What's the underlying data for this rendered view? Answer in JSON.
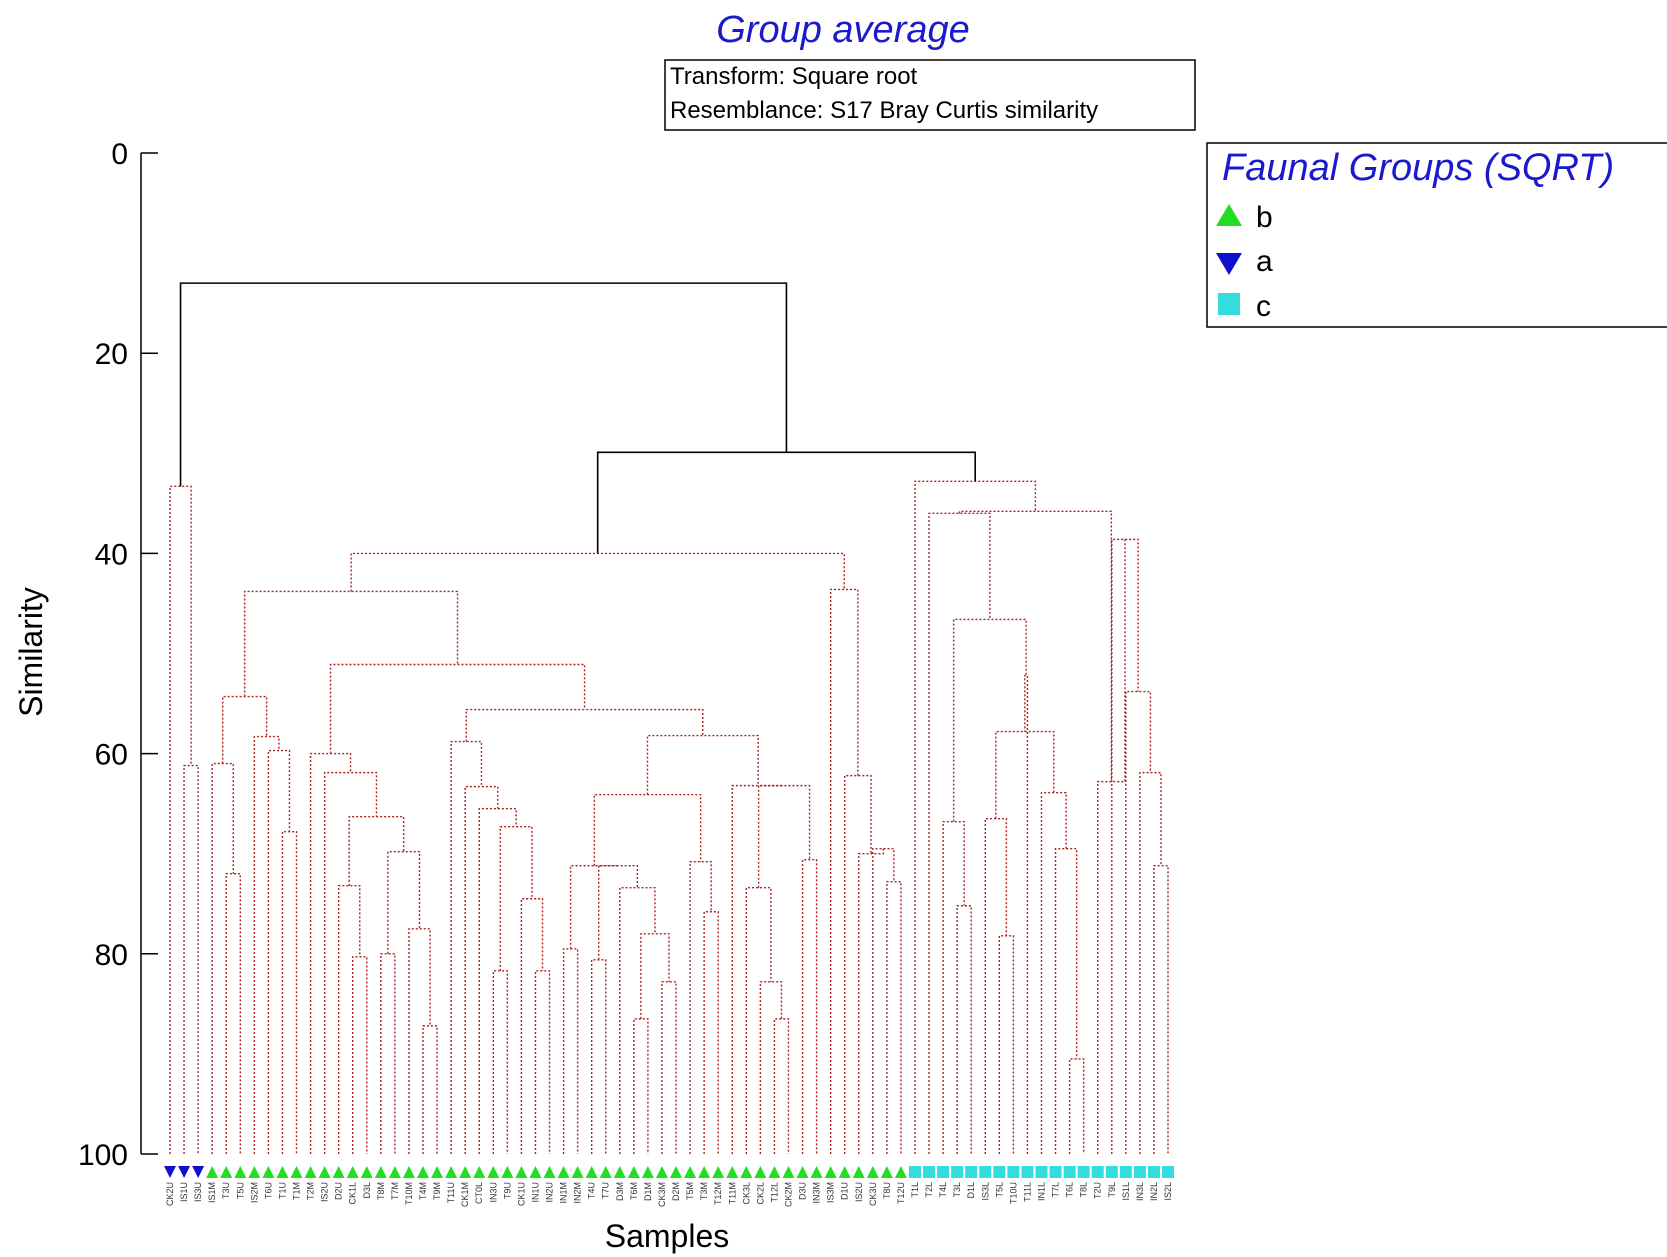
{
  "chart_data": {
    "type": "dendrogram",
    "title": "Group average",
    "info": [
      "Transform: Square root",
      "Resemblance: S17 Bray Curtis similarity"
    ],
    "xlabel": "Samples",
    "ylabel": "Similarity",
    "ylim": [
      0,
      100
    ],
    "y_ticks": [
      0,
      20,
      40,
      60,
      80,
      100
    ],
    "legend": {
      "title": "Faunal Groups (SQRT)",
      "placement": "top-right",
      "entries": [
        {
          "label": "b",
          "marker": "triangle-up",
          "color": "#22dd22"
        },
        {
          "label": "a",
          "marker": "triangle-down",
          "color": "#1010cc"
        },
        {
          "label": "c",
          "marker": "square",
          "color": "#33dddd"
        }
      ]
    },
    "colors": {
      "significant": "#aa2222",
      "nonsignificant": "#000000"
    },
    "samples": [
      {
        "label": "CK2U",
        "group": "a"
      },
      {
        "label": "IS1U",
        "group": "a"
      },
      {
        "label": "IS3U",
        "group": "a"
      },
      {
        "label": "IS1M",
        "group": "b"
      },
      {
        "label": "T3U",
        "group": "b"
      },
      {
        "label": "T5U",
        "group": "b"
      },
      {
        "label": "IS2M",
        "group": "b"
      },
      {
        "label": "T6U",
        "group": "b"
      },
      {
        "label": "T1U",
        "group": "b"
      },
      {
        "label": "T1M",
        "group": "b"
      },
      {
        "label": "T2M",
        "group": "b"
      },
      {
        "label": "IS2U",
        "group": "b"
      },
      {
        "label": "D2U",
        "group": "b"
      },
      {
        "label": "CK1L",
        "group": "b"
      },
      {
        "label": "D3L",
        "group": "b"
      },
      {
        "label": "T8M",
        "group": "b"
      },
      {
        "label": "T7M",
        "group": "b"
      },
      {
        "label": "T10M",
        "group": "b"
      },
      {
        "label": "T4M",
        "group": "b"
      },
      {
        "label": "T9M",
        "group": "b"
      },
      {
        "label": "T11U",
        "group": "b"
      },
      {
        "label": "CK1M",
        "group": "b"
      },
      {
        "label": "CT0L",
        "group": "b"
      },
      {
        "label": "IN3U",
        "group": "b"
      },
      {
        "label": "T9U",
        "group": "b"
      },
      {
        "label": "CK1U",
        "group": "b"
      },
      {
        "label": "IN1U",
        "group": "b"
      },
      {
        "label": "IN2U",
        "group": "b"
      },
      {
        "label": "IN1M",
        "group": "b"
      },
      {
        "label": "IN2M",
        "group": "b"
      },
      {
        "label": "T4U",
        "group": "b"
      },
      {
        "label": "T7U",
        "group": "b"
      },
      {
        "label": "D3M",
        "group": "b"
      },
      {
        "label": "T6M",
        "group": "b"
      },
      {
        "label": "D1M",
        "group": "b"
      },
      {
        "label": "CK3M",
        "group": "b"
      },
      {
        "label": "D2M",
        "group": "b"
      },
      {
        "label": "T5M",
        "group": "b"
      },
      {
        "label": "T3M",
        "group": "b"
      },
      {
        "label": "T12M",
        "group": "b"
      },
      {
        "label": "T11M",
        "group": "b"
      },
      {
        "label": "CK3L",
        "group": "b"
      },
      {
        "label": "CK2L",
        "group": "b"
      },
      {
        "label": "T12L",
        "group": "b"
      },
      {
        "label": "CK2M",
        "group": "b"
      },
      {
        "label": "D3U",
        "group": "b"
      },
      {
        "label": "IN3M",
        "group": "b"
      },
      {
        "label": "IS3M",
        "group": "b"
      },
      {
        "label": "D1U",
        "group": "b"
      },
      {
        "label": "IS2U",
        "group": "b"
      },
      {
        "label": "CK3U",
        "group": "b"
      },
      {
        "label": "T8U",
        "group": "b"
      },
      {
        "label": "T12U",
        "group": "b"
      },
      {
        "label": "T1L",
        "group": "c"
      },
      {
        "label": "T2L",
        "group": "c"
      },
      {
        "label": "T4L",
        "group": "c"
      },
      {
        "label": "T3L",
        "group": "c"
      },
      {
        "label": "D1L",
        "group": "c"
      },
      {
        "label": "IS3L",
        "group": "c"
      },
      {
        "label": "T5L",
        "group": "c"
      },
      {
        "label": "T10U",
        "group": "c"
      },
      {
        "label": "T11L",
        "group": "c"
      },
      {
        "label": "IN1L",
        "group": "c"
      },
      {
        "label": "T7L",
        "group": "c"
      },
      {
        "label": "T6L",
        "group": "c"
      },
      {
        "label": "T8L",
        "group": "c"
      },
      {
        "label": "T2U",
        "group": "c"
      },
      {
        "label": "T9L",
        "group": "c"
      },
      {
        "label": "IS1L",
        "group": "c"
      },
      {
        "label": "IN3L",
        "group": "c"
      },
      {
        "label": "IN2L",
        "group": "c"
      },
      {
        "label": "IS2L",
        "group": "c"
      }
    ],
    "merges": [
      {
        "left": 1,
        "right": 2,
        "sim": 61.2,
        "sig": true
      },
      {
        "left": 0,
        "right": 72,
        "sim": 33.3,
        "sig": true
      },
      {
        "left": 4,
        "right": 5,
        "sim": 72.0,
        "sig": true
      },
      {
        "left": 3,
        "right": 74,
        "sim": 61.0,
        "sig": true
      },
      {
        "left": 8,
        "right": 9,
        "sim": 67.8,
        "sig": true
      },
      {
        "left": 7,
        "right": 76,
        "sim": 59.7,
        "sig": true
      },
      {
        "left": 6,
        "right": 77,
        "sim": 58.3,
        "sig": true
      },
      {
        "left": 75,
        "right": 78,
        "sim": 54.3,
        "sig": true
      },
      {
        "left": 13,
        "right": 14,
        "sim": 80.3,
        "sig": true
      },
      {
        "left": 12,
        "right": 80,
        "sim": 73.2,
        "sig": true
      },
      {
        "left": 15,
        "right": 16,
        "sim": 80.0,
        "sig": true
      },
      {
        "left": 18,
        "right": 19,
        "sim": 87.2,
        "sig": true
      },
      {
        "left": 17,
        "right": 83,
        "sim": 77.5,
        "sig": true
      },
      {
        "left": 82,
        "right": 84,
        "sim": 69.8,
        "sig": true
      },
      {
        "left": 81,
        "right": 85,
        "sim": 66.3,
        "sig": true
      },
      {
        "left": 11,
        "right": 86,
        "sim": 61.9,
        "sig": true
      },
      {
        "left": 10,
        "right": 87,
        "sim": 60.0,
        "sig": true
      },
      {
        "left": 23,
        "right": 24,
        "sim": 81.7,
        "sig": true
      },
      {
        "left": 26,
        "right": 27,
        "sim": 81.7,
        "sig": true
      },
      {
        "left": 25,
        "right": 90,
        "sim": 74.5,
        "sig": true
      },
      {
        "left": 89,
        "right": 91,
        "sim": 67.3,
        "sig": true
      },
      {
        "left": 22,
        "right": 92,
        "sim": 65.5,
        "sig": true
      },
      {
        "left": 21,
        "right": 93,
        "sim": 63.3,
        "sig": true
      },
      {
        "left": 20,
        "right": 94,
        "sim": 58.8,
        "sig": true
      },
      {
        "left": 28,
        "right": 29,
        "sim": 79.5,
        "sig": true
      },
      {
        "left": 30,
        "right": 31,
        "sim": 80.6,
        "sig": true
      },
      {
        "left": 33,
        "right": 34,
        "sim": 86.5,
        "sig": true
      },
      {
        "left": 35,
        "right": 36,
        "sim": 82.8,
        "sig": true
      },
      {
        "left": 98,
        "right": 99,
        "sim": 78.0,
        "sig": true
      },
      {
        "left": 32,
        "right": 100,
        "sim": 73.4,
        "sig": true
      },
      {
        "left": 97,
        "right": 101,
        "sim": 71.2,
        "sig": true
      },
      {
        "left": 96,
        "right": 102,
        "sim": 71.2,
        "sig": true
      },
      {
        "left": 38,
        "right": 39,
        "sim": 75.8,
        "sig": true
      },
      {
        "left": 37,
        "right": 104,
        "sim": 70.8,
        "sig": true
      },
      {
        "left": 103,
        "right": 105,
        "sim": 64.1,
        "sig": true
      },
      {
        "left": 43,
        "right": 44,
        "sim": 86.5,
        "sig": true
      },
      {
        "left": 42,
        "right": 107,
        "sim": 82.8,
        "sig": true
      },
      {
        "left": 41,
        "right": 108,
        "sim": 73.4,
        "sig": true
      },
      {
        "left": 45,
        "right": 46,
        "sim": 70.6,
        "sig": true
      },
      {
        "left": 109,
        "right": 110,
        "sim": 63.2,
        "sig": true
      },
      {
        "left": 40,
        "right": 111,
        "sim": 63.2,
        "sig": true
      },
      {
        "left": 106,
        "right": 112,
        "sim": 58.2,
        "sig": true
      },
      {
        "left": 95,
        "right": 113,
        "sim": 55.6,
        "sig": true
      },
      {
        "left": 88,
        "right": 114,
        "sim": 51.1,
        "sig": true
      },
      {
        "left": 79,
        "right": 115,
        "sim": 43.8,
        "sig": true
      },
      {
        "left": 51,
        "right": 52,
        "sim": 72.8,
        "sig": true
      },
      {
        "left": 50,
        "right": 117,
        "sim": 69.5,
        "sig": true
      },
      {
        "left": 49,
        "right": 118,
        "sim": 70.0,
        "sig": true
      },
      {
        "left": 48,
        "right": 119,
        "sim": 62.2,
        "sig": true
      },
      {
        "left": 47,
        "right": 120,
        "sim": 43.6,
        "sig": true
      },
      {
        "left": 116,
        "right": 121,
        "sim": 40.0,
        "sig": true
      },
      {
        "left": 56,
        "right": 57,
        "sim": 75.2,
        "sig": true
      },
      {
        "left": 55,
        "right": 123,
        "sim": 66.8,
        "sig": true
      },
      {
        "left": 59,
        "right": 60,
        "sim": 78.2,
        "sig": true
      },
      {
        "left": 58,
        "right": 125,
        "sim": 66.5,
        "sig": true
      },
      {
        "left": 64,
        "right": 65,
        "sim": 90.5,
        "sig": true
      },
      {
        "left": 63,
        "right": 127,
        "sim": 69.5,
        "sig": true
      },
      {
        "left": 62,
        "right": 128,
        "sim": 63.9,
        "sig": true
      },
      {
        "left": 126,
        "right": 129,
        "sim": 57.8,
        "sig": true
      },
      {
        "left": 61,
        "right": 130,
        "sim": 52.2,
        "sig": true
      },
      {
        "left": 124,
        "right": 131,
        "sim": 46.6,
        "sig": true
      },
      {
        "left": 54,
        "right": 132,
        "sim": 36.0,
        "sig": true
      },
      {
        "left": 70,
        "right": 71,
        "sim": 71.2,
        "sig": true
      },
      {
        "left": 69,
        "right": 134,
        "sim": 61.9,
        "sig": true
      },
      {
        "left": 68,
        "right": 135,
        "sim": 53.8,
        "sig": true
      },
      {
        "left": 67,
        "right": 136,
        "sim": 38.6,
        "sig": true
      },
      {
        "left": 66,
        "right": 137,
        "sim": 62.8,
        "sig": true
      },
      {
        "left": 133,
        "right": 138,
        "sim": 35.8,
        "sig": true
      },
      {
        "left": 53,
        "right": 139,
        "sim": 32.8,
        "sig": true
      },
      {
        "left": 122,
        "right": 140,
        "sim": 29.9,
        "sig": false
      },
      {
        "left": 73,
        "right": 141,
        "sim": 13.0,
        "sig": false
      }
    ]
  }
}
